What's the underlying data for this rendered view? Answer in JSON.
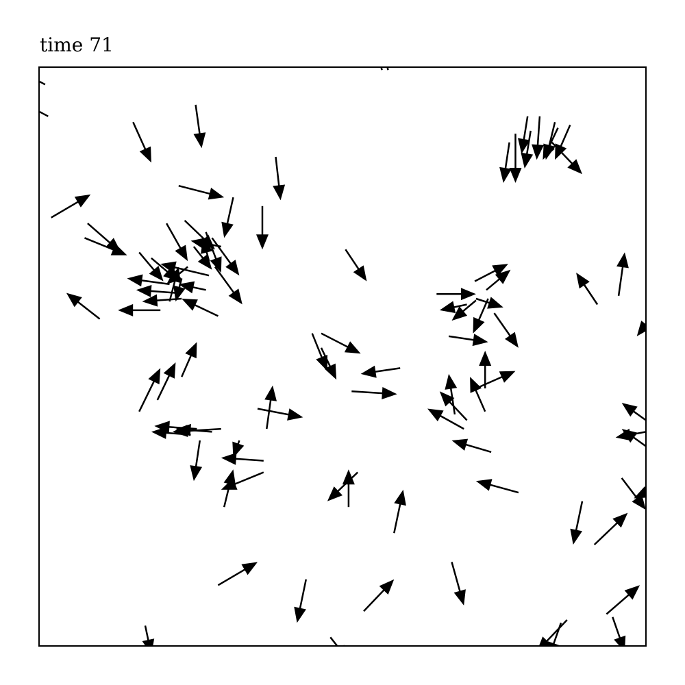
{
  "chart_data": {
    "type": "quiver",
    "title": "time 71",
    "xlabel": "",
    "ylabel": "",
    "xlim": [
      0,
      1
    ],
    "ylim": [
      0,
      1
    ],
    "grid": false,
    "axis_ticks": false,
    "arrow_color": "#000000",
    "arrows": [
      {
        "x": 0.01,
        "y": 0.97,
        "u": -0.055,
        "v": 0.03
      },
      {
        "x": 0.015,
        "y": 0.915,
        "u": -0.045,
        "v": 0.025
      },
      {
        "x": 0.565,
        "y": 0.995,
        "u": -0.01,
        "v": 0.04
      },
      {
        "x": 0.575,
        "y": 0.995,
        "u": -0.01,
        "v": 0.045
      },
      {
        "x": 0.155,
        "y": 0.905,
        "u": 0.03,
        "v": -0.07
      },
      {
        "x": 0.258,
        "y": 0.935,
        "u": 0.01,
        "v": -0.075
      },
      {
        "x": 0.39,
        "y": 0.845,
        "u": 0.008,
        "v": -0.075
      },
      {
        "x": 0.02,
        "y": 0.74,
        "u": 0.065,
        "v": 0.04
      },
      {
        "x": 0.23,
        "y": 0.795,
        "u": 0.075,
        "v": -0.02
      },
      {
        "x": 0.32,
        "y": 0.775,
        "u": -0.015,
        "v": -0.07
      },
      {
        "x": 0.368,
        "y": 0.76,
        "u": 0.0,
        "v": -0.075
      },
      {
        "x": 0.08,
        "y": 0.73,
        "u": 0.055,
        "v": -0.05
      },
      {
        "x": 0.075,
        "y": 0.705,
        "u": 0.07,
        "v": -0.03
      },
      {
        "x": 0.21,
        "y": 0.73,
        "u": 0.035,
        "v": -0.065
      },
      {
        "x": 0.24,
        "y": 0.735,
        "u": 0.05,
        "v": -0.05
      },
      {
        "x": 0.275,
        "y": 0.715,
        "u": 0.025,
        "v": -0.07
      },
      {
        "x": 0.285,
        "y": 0.705,
        "u": 0.045,
        "v": -0.065
      },
      {
        "x": 0.3,
        "y": 0.69,
        "u": -0.05,
        "v": 0.01
      },
      {
        "x": 0.255,
        "y": 0.69,
        "u": 0.03,
        "v": -0.04
      },
      {
        "x": 0.165,
        "y": 0.68,
        "u": 0.04,
        "v": -0.05
      },
      {
        "x": 0.185,
        "y": 0.67,
        "u": 0.045,
        "v": -0.04
      },
      {
        "x": 0.29,
        "y": 0.655,
        "u": 0.045,
        "v": -0.065
      },
      {
        "x": 0.28,
        "y": 0.665,
        "u": -0.01,
        "v": 0.04
      },
      {
        "x": 0.215,
        "y": 0.625,
        "u": -0.07,
        "v": 0.01
      },
      {
        "x": 0.225,
        "y": 0.61,
        "u": -0.065,
        "v": 0.005
      },
      {
        "x": 0.235,
        "y": 0.6,
        "u": -0.065,
        "v": -0.005
      },
      {
        "x": 0.2,
        "y": 0.58,
        "u": -0.07,
        "v": 0.0
      },
      {
        "x": 0.28,
        "y": 0.64,
        "u": -0.08,
        "v": 0.02
      },
      {
        "x": 0.275,
        "y": 0.615,
        "u": -0.045,
        "v": 0.01
      },
      {
        "x": 0.295,
        "y": 0.57,
        "u": -0.06,
        "v": 0.03
      },
      {
        "x": 0.235,
        "y": 0.635,
        "u": -0.01,
        "v": -0.04
      },
      {
        "x": 0.245,
        "y": 0.655,
        "u": -0.035,
        "v": -0.03
      },
      {
        "x": 0.215,
        "y": 0.595,
        "u": 0.015,
        "v": 0.06
      },
      {
        "x": 0.1,
        "y": 0.565,
        "u": -0.055,
        "v": 0.045
      },
      {
        "x": 0.505,
        "y": 0.685,
        "u": 0.035,
        "v": -0.055
      },
      {
        "x": 0.92,
        "y": 0.59,
        "u": -0.035,
        "v": 0.055
      },
      {
        "x": 0.955,
        "y": 0.605,
        "u": 0.01,
        "v": 0.075
      },
      {
        "x": 1.0,
        "y": 0.555,
        "u": -0.015,
        "v": -0.02
      },
      {
        "x": 0.805,
        "y": 0.915,
        "u": -0.01,
        "v": -0.065
      },
      {
        "x": 0.825,
        "y": 0.915,
        "u": -0.005,
        "v": -0.075
      },
      {
        "x": 0.81,
        "y": 0.89,
        "u": -0.01,
        "v": -0.065
      },
      {
        "x": 0.775,
        "y": 0.87,
        "u": -0.01,
        "v": -0.07
      },
      {
        "x": 0.785,
        "y": 0.885,
        "u": 0.0,
        "v": -0.085
      },
      {
        "x": 0.85,
        "y": 0.905,
        "u": -0.015,
        "v": -0.065
      },
      {
        "x": 0.855,
        "y": 0.895,
        "u": -0.025,
        "v": -0.055
      },
      {
        "x": 0.875,
        "y": 0.9,
        "u": -0.025,
        "v": -0.06
      },
      {
        "x": 0.845,
        "y": 0.87,
        "u": 0.05,
        "v": -0.055
      },
      {
        "x": 0.718,
        "y": 0.63,
        "u": 0.055,
        "v": 0.03
      },
      {
        "x": 0.737,
        "y": 0.615,
        "u": 0.04,
        "v": 0.035
      },
      {
        "x": 0.74,
        "y": 0.6,
        "u": -0.025,
        "v": -0.06
      },
      {
        "x": 0.72,
        "y": 0.597,
        "u": -0.04,
        "v": -0.035
      },
      {
        "x": 0.655,
        "y": 0.608,
        "u": 0.065,
        "v": 0.0
      },
      {
        "x": 0.705,
        "y": 0.59,
        "u": -0.045,
        "v": -0.01
      },
      {
        "x": 0.72,
        "y": 0.6,
        "u": 0.045,
        "v": -0.015
      },
      {
        "x": 0.75,
        "y": 0.575,
        "u": 0.04,
        "v": -0.06
      },
      {
        "x": 0.675,
        "y": 0.535,
        "u": 0.065,
        "v": -0.01
      },
      {
        "x": 0.735,
        "y": 0.445,
        "u": 0.0,
        "v": 0.065
      },
      {
        "x": 0.72,
        "y": 0.445,
        "u": 0.065,
        "v": 0.03
      },
      {
        "x": 0.685,
        "y": 0.4,
        "u": -0.01,
        "v": 0.07
      },
      {
        "x": 0.735,
        "y": 0.405,
        "u": -0.025,
        "v": 0.06
      },
      {
        "x": 0.705,
        "y": 0.39,
        "u": -0.045,
        "v": 0.05
      },
      {
        "x": 0.7,
        "y": 0.375,
        "u": -0.06,
        "v": 0.035
      },
      {
        "x": 0.745,
        "y": 0.335,
        "u": -0.065,
        "v": 0.02
      },
      {
        "x": 0.45,
        "y": 0.54,
        "u": 0.025,
        "v": -0.065
      },
      {
        "x": 0.465,
        "y": 0.515,
        "u": 0.025,
        "v": -0.055
      },
      {
        "x": 0.465,
        "y": 0.54,
        "u": 0.065,
        "v": -0.035
      },
      {
        "x": 0.595,
        "y": 0.48,
        "u": -0.065,
        "v": -0.01
      },
      {
        "x": 0.515,
        "y": 0.44,
        "u": 0.075,
        "v": -0.005
      },
      {
        "x": 0.165,
        "y": 0.405,
        "u": 0.035,
        "v": 0.075
      },
      {
        "x": 0.195,
        "y": 0.425,
        "u": 0.03,
        "v": 0.065
      },
      {
        "x": 0.235,
        "y": 0.465,
        "u": 0.025,
        "v": 0.06
      },
      {
        "x": 0.375,
        "y": 0.375,
        "u": 0.01,
        "v": 0.075
      },
      {
        "x": 0.36,
        "y": 0.41,
        "u": 0.075,
        "v": -0.015
      },
      {
        "x": 0.3,
        "y": 0.375,
        "u": -0.08,
        "v": -0.005
      },
      {
        "x": 0.285,
        "y": 0.37,
        "u": -0.06,
        "v": 0.005
      },
      {
        "x": 0.26,
        "y": 0.375,
        "u": -0.07,
        "v": 0.005
      },
      {
        "x": 0.25,
        "y": 0.365,
        "u": -0.065,
        "v": 0.005
      },
      {
        "x": 0.265,
        "y": 0.355,
        "u": -0.01,
        "v": -0.07
      },
      {
        "x": 0.33,
        "y": 0.355,
        "u": -0.01,
        "v": -0.03
      },
      {
        "x": 0.37,
        "y": 0.32,
        "u": -0.07,
        "v": 0.005
      },
      {
        "x": 0.37,
        "y": 0.3,
        "u": -0.07,
        "v": -0.03
      },
      {
        "x": 0.305,
        "y": 0.24,
        "u": 0.015,
        "v": 0.065
      },
      {
        "x": 0.51,
        "y": 0.24,
        "u": 0.0,
        "v": 0.065
      },
      {
        "x": 0.525,
        "y": 0.3,
        "u": -0.05,
        "v": -0.05
      },
      {
        "x": 0.585,
        "y": 0.195,
        "u": 0.015,
        "v": 0.075
      },
      {
        "x": 0.79,
        "y": 0.265,
        "u": -0.07,
        "v": 0.02
      },
      {
        "x": 1.0,
        "y": 0.39,
        "u": -0.04,
        "v": 0.03
      },
      {
        "x": 1.0,
        "y": 0.345,
        "u": -0.04,
        "v": 0.03
      },
      {
        "x": 1.0,
        "y": 0.37,
        "u": -0.05,
        "v": -0.01
      },
      {
        "x": 0.96,
        "y": 0.29,
        "u": 0.04,
        "v": -0.055
      },
      {
        "x": 1.0,
        "y": 0.265,
        "u": -0.02,
        "v": -0.01
      },
      {
        "x": 0.895,
        "y": 0.25,
        "u": -0.015,
        "v": -0.075
      },
      {
        "x": 0.915,
        "y": 0.175,
        "u": 0.055,
        "v": 0.055
      },
      {
        "x": 0.935,
        "y": 0.055,
        "u": 0.055,
        "v": 0.05
      },
      {
        "x": 0.295,
        "y": 0.105,
        "u": 0.065,
        "v": 0.04
      },
      {
        "x": 0.44,
        "y": 0.115,
        "u": -0.015,
        "v": -0.075
      },
      {
        "x": 0.535,
        "y": 0.06,
        "u": 0.05,
        "v": 0.055
      },
      {
        "x": 0.68,
        "y": 0.145,
        "u": 0.02,
        "v": -0.075
      },
      {
        "x": 0.175,
        "y": 0.035,
        "u": 0.01,
        "v": -0.05
      },
      {
        "x": 0.48,
        "y": 0.015,
        "u": 0.03,
        "v": -0.04
      },
      {
        "x": 0.87,
        "y": 0.045,
        "u": -0.05,
        "v": -0.055
      },
      {
        "x": 0.86,
        "y": 0.04,
        "u": -0.02,
        "v": -0.06
      },
      {
        "x": 0.945,
        "y": 0.05,
        "u": 0.02,
        "v": -0.06
      }
    ]
  }
}
